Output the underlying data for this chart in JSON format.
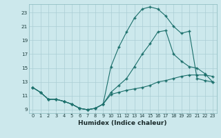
{
  "xlabel": "Humidex (Indice chaleur)",
  "bg_color": "#cce8ec",
  "grid_color": "#aacdd4",
  "line_color": "#1a6e6a",
  "xlim": [
    -0.5,
    23.5
  ],
  "ylim": [
    8.5,
    24.2
  ],
  "xticks": [
    0,
    1,
    2,
    3,
    4,
    5,
    6,
    7,
    8,
    9,
    10,
    11,
    12,
    13,
    14,
    15,
    16,
    17,
    18,
    19,
    20,
    21,
    22,
    23
  ],
  "yticks": [
    9,
    11,
    13,
    15,
    17,
    19,
    21,
    23
  ],
  "line1_x": [
    0,
    1,
    2,
    3,
    4,
    5,
    6,
    7,
    8,
    9,
    10,
    11,
    12,
    13,
    14,
    15,
    16,
    17,
    18,
    19,
    20,
    21,
    22,
    23
  ],
  "line1_y": [
    12.2,
    11.5,
    10.5,
    10.5,
    10.2,
    9.8,
    9.2,
    9.0,
    9.2,
    9.8,
    11.2,
    11.5,
    11.8,
    12.0,
    12.2,
    12.5,
    13.0,
    13.2,
    13.5,
    13.8,
    14.0,
    14.0,
    14.0,
    13.8
  ],
  "line2_x": [
    0,
    1,
    2,
    3,
    4,
    5,
    6,
    7,
    8,
    9,
    10,
    11,
    12,
    13,
    14,
    15,
    16,
    17,
    18,
    19,
    20,
    21,
    22,
    23
  ],
  "line2_y": [
    12.2,
    11.5,
    10.5,
    10.5,
    10.2,
    9.8,
    9.2,
    9.0,
    9.2,
    9.8,
    15.2,
    18.0,
    20.2,
    22.2,
    23.5,
    23.8,
    23.5,
    22.5,
    21.0,
    20.0,
    20.3,
    13.5,
    13.2,
    13.0
  ],
  "line3_x": [
    0,
    1,
    2,
    3,
    4,
    5,
    6,
    7,
    8,
    9,
    10,
    11,
    12,
    13,
    14,
    15,
    16,
    17,
    18,
    19,
    20,
    21,
    22,
    23
  ],
  "line3_y": [
    12.2,
    11.5,
    10.5,
    10.5,
    10.2,
    9.8,
    9.2,
    9.0,
    9.2,
    9.8,
    11.5,
    12.5,
    13.5,
    15.2,
    17.0,
    18.5,
    20.2,
    20.4,
    17.0,
    16.0,
    15.2,
    15.0,
    14.2,
    13.0
  ]
}
